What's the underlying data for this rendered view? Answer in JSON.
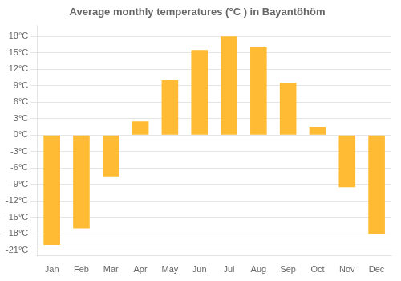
{
  "chart_data": {
    "type": "bar",
    "title": "Average monthly temperatures (°C ) in Bayantöhöm",
    "categories": [
      "Jan",
      "Feb",
      "Mar",
      "Apr",
      "May",
      "Jun",
      "Jul",
      "Aug",
      "Sep",
      "Oct",
      "Nov",
      "Dec"
    ],
    "values": [
      -20,
      -17,
      -7.5,
      2.5,
      10,
      15.5,
      18,
      16,
      9.5,
      1.5,
      -9.5,
      -18
    ],
    "color": "#FFBB33",
    "ylim": [
      -22,
      20
    ],
    "yticks": [
      {
        "value": -21,
        "label": "-21°C"
      },
      {
        "value": -18,
        "label": "-18°C"
      },
      {
        "value": -15,
        "label": "-15°C"
      },
      {
        "value": -12,
        "label": "-12°C"
      },
      {
        "value": -9,
        "label": "-9°C"
      },
      {
        "value": -6,
        "label": "-6°C"
      },
      {
        "value": -3,
        "label": "-3°C"
      },
      {
        "value": 0,
        "label": "0°C"
      },
      {
        "value": 3,
        "label": "3°C"
      },
      {
        "value": 6,
        "label": "6°C"
      },
      {
        "value": 9,
        "label": "9°C"
      },
      {
        "value": 12,
        "label": "12°C"
      },
      {
        "value": 15,
        "label": "15°C"
      },
      {
        "value": 18,
        "label": "18°C"
      }
    ],
    "grid": true
  }
}
